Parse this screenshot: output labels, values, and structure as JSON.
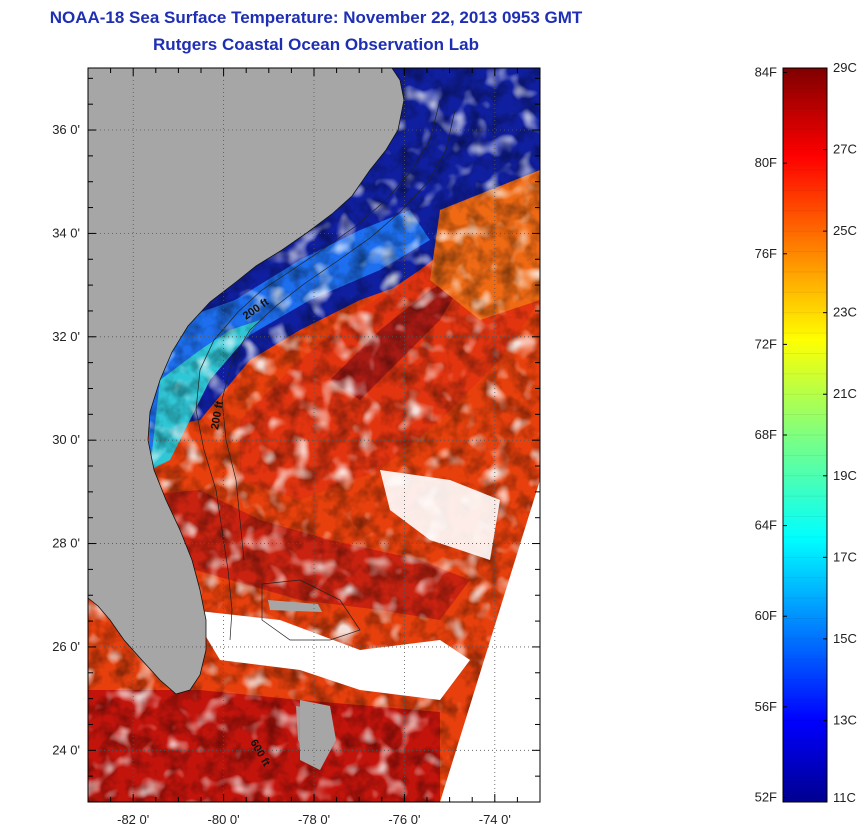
{
  "header": {
    "title": "NOAA-18 Sea Surface Temperature:  November 22, 2013 0953 GMT",
    "subtitle": "Rutgers Coastal Ocean Observation Lab"
  },
  "map": {
    "lat_labels": [
      "24 0'",
      "26 0'",
      "28 0'",
      "30 0'",
      "32 0'",
      "34 0'",
      "36 0'"
    ],
    "lon_labels": [
      "-82 0'",
      "-80 0'",
      "-78 0'",
      "-76 0'",
      "-74 0'"
    ],
    "lat_range": [
      23,
      37.2
    ],
    "lon_range": [
      -83,
      -73
    ],
    "contour_labels": [
      "200 ft",
      "200 ft",
      "600 ft"
    ],
    "colors": {
      "land": "#a6a6a6",
      "cloud": "#ffffff",
      "warm": "#e8320a",
      "cold": "#0a1f9c"
    }
  },
  "colorbar": {
    "fahrenheit_labels": [
      "84F",
      "80F",
      "76F",
      "72F",
      "68F",
      "64F",
      "60F",
      "56F",
      "52F"
    ],
    "celsius_labels": [
      "29C",
      "27C",
      "25C",
      "23C",
      "21C",
      "19C",
      "17C",
      "15C",
      "13C",
      "11C"
    ],
    "range_c": [
      11,
      29
    ],
    "colormap": "jet"
  }
}
